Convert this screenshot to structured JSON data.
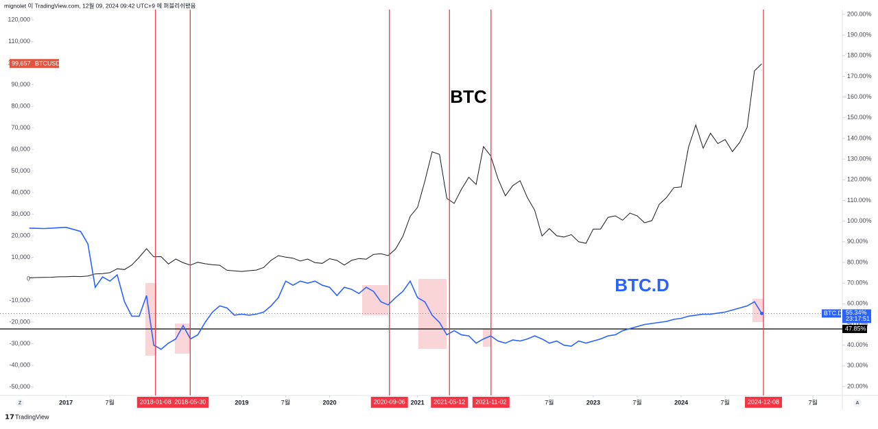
{
  "header": {
    "publisher": "mignolet 이 TradingView.com, 12월 09, 2024 09:42 UTC+9 에 퍼블리쉬됐음"
  },
  "footer": {
    "brand": "TradingView"
  },
  "chart_data": {
    "type": "line",
    "annotations": [
      "BTC",
      "BTC.D"
    ],
    "xlim": [
      "2016-04",
      "2025-11"
    ],
    "xticks": [
      {
        "value": "2017-01",
        "label": "2017"
      },
      {
        "value": "2017-07",
        "label": "7월"
      },
      {
        "value": "2019-01",
        "label": "2019"
      },
      {
        "value": "2019-07",
        "label": "7월"
      },
      {
        "value": "2020-01",
        "label": "2020"
      },
      {
        "value": "2021-01",
        "label": "2021"
      },
      {
        "value": "2022-07",
        "label": "7월"
      },
      {
        "value": "2023-01",
        "label": "2023"
      },
      {
        "value": "2023-07",
        "label": "7월"
      },
      {
        "value": "2024-01",
        "label": "2024"
      },
      {
        "value": "2024-07",
        "label": "7월"
      },
      {
        "value": "2025-07",
        "label": "7월"
      }
    ],
    "ylim": [
      -54000,
      124800
    ],
    "yticks": [
      {
        "value": -50000,
        "label": "-50,000"
      },
      {
        "value": -40000,
        "label": "-40,000"
      },
      {
        "value": -30000,
        "label": "-30,000"
      },
      {
        "value": -20000,
        "label": "-20,000"
      },
      {
        "value": -10000,
        "label": "-10,000"
      },
      0,
      {
        "value": 10000,
        "label": "10,000"
      },
      {
        "value": 20000,
        "label": "20,000"
      },
      {
        "value": 30000,
        "label": "30,000"
      },
      {
        "value": 40000,
        "label": "40,000"
      },
      {
        "value": 50000,
        "label": "50,000"
      },
      {
        "value": 60000,
        "label": "60,000"
      },
      {
        "value": 70000,
        "label": "70,000"
      },
      {
        "value": 80000,
        "label": "80,000"
      },
      {
        "value": 90000,
        "label": "90,000"
      },
      {
        "value": 100000,
        "label": "100,000"
      },
      {
        "value": 110000,
        "label": "110,000"
      },
      {
        "value": 120000,
        "label": "120,000"
      }
    ],
    "y2lim": [
      15.7,
      202.3
    ],
    "y2ticks": [
      {
        "value": 20,
        "label": "20.00%"
      },
      {
        "value": 30,
        "label": "30.00%"
      },
      {
        "value": 40,
        "label": "40.00%"
      },
      {
        "value": 50,
        "label": "50.00%"
      },
      {
        "value": 60,
        "label": "60.00%"
      },
      {
        "value": 70,
        "label": "70.00%"
      },
      {
        "value": 80,
        "label": "80.00%"
      },
      {
        "value": 90,
        "label": "90.00%"
      },
      {
        "value": 100,
        "label": "100.00%"
      },
      {
        "value": 110,
        "label": "110.00%"
      },
      {
        "value": 120,
        "label": "120.00%"
      },
      {
        "value": 130,
        "label": "130.00%"
      },
      {
        "value": 140,
        "label": "140.00%"
      },
      {
        "value": 150,
        "label": "150.00%"
      },
      {
        "value": 160,
        "label": "160.00%"
      },
      {
        "value": 170,
        "label": "170.00%"
      },
      {
        "value": 180,
        "label": "180.00%"
      },
      {
        "value": 190,
        "label": "190.00%"
      },
      {
        "value": 200,
        "label": "200.00%"
      }
    ],
    "hline": {
      "value": 47.85,
      "label": "47.85%",
      "axis": "y2",
      "color": "#000000"
    },
    "event_dates": [
      "2018-01-08",
      "2018-05-30",
      "2020-09-06",
      "2021-05-12",
      "2021-11-02",
      "2024-12-08"
    ],
    "event_color": "#f23645",
    "x": [
      "2016-08",
      "2016-09",
      "2016-10",
      "2016-11",
      "2016-12",
      "2017-01",
      "2017-02",
      "2017-03",
      "2017-04",
      "2017-05",
      "2017-06",
      "2017-07",
      "2017-08",
      "2017-09",
      "2017-10",
      "2017-11",
      "2017-12",
      "2018-01",
      "2018-02",
      "2018-03",
      "2018-04",
      "2018-05",
      "2018-06",
      "2018-07",
      "2018-08",
      "2018-09",
      "2018-10",
      "2018-11",
      "2018-12",
      "2019-01",
      "2019-02",
      "2019-03",
      "2019-04",
      "2019-05",
      "2019-06",
      "2019-07",
      "2019-08",
      "2019-09",
      "2019-10",
      "2019-11",
      "2019-12",
      "2020-01",
      "2020-02",
      "2020-03",
      "2020-04",
      "2020-05",
      "2020-06",
      "2020-07",
      "2020-08",
      "2020-09",
      "2020-10",
      "2020-11",
      "2020-12",
      "2021-01",
      "2021-02",
      "2021-03",
      "2021-04",
      "2021-05",
      "2021-06",
      "2021-07",
      "2021-08",
      "2021-09",
      "2021-10",
      "2021-11",
      "2021-12",
      "2022-01",
      "2022-02",
      "2022-03",
      "2022-04",
      "2022-05",
      "2022-06",
      "2022-07",
      "2022-08",
      "2022-09",
      "2022-10",
      "2022-11",
      "2022-12",
      "2023-01",
      "2023-02",
      "2023-03",
      "2023-04",
      "2023-05",
      "2023-06",
      "2023-07",
      "2023-08",
      "2023-09",
      "2023-10",
      "2023-11",
      "2023-12",
      "2024-01",
      "2024-02",
      "2024-03",
      "2024-04",
      "2024-05",
      "2024-06",
      "2024-07",
      "2024-08",
      "2024-09",
      "2024-10",
      "2024-11",
      "2024-12"
    ],
    "series": [
      {
        "name": "BTCUSD",
        "color": "#131722",
        "last_label": "99,657",
        "tag_color": "#e0553f",
        "values": [
          575,
          610,
          700,
          740,
          960,
          970,
          1190,
          1080,
          1350,
          2300,
          2480,
          2870,
          4700,
          4340,
          6450,
          10000,
          14000,
          10200,
          10300,
          6900,
          9200,
          7500,
          6400,
          7700,
          7000,
          6600,
          6300,
          4000,
          3700,
          3450,
          3800,
          4100,
          5300,
          8600,
          10800,
          10100,
          9600,
          8300,
          9200,
          7550,
          7200,
          9350,
          8550,
          6400,
          8600,
          9450,
          9150,
          11350,
          11650,
          10780,
          13800,
          19700,
          29000,
          33100,
          45200,
          58900,
          57700,
          37300,
          35000,
          41500,
          47100,
          43800,
          61300,
          57000,
          46300,
          38500,
          43200,
          45500,
          37700,
          31800,
          19900,
          23300,
          20000,
          19400,
          20500,
          17200,
          16500,
          23100,
          23100,
          28500,
          29200,
          27200,
          30500,
          29200,
          26000,
          27000,
          34500,
          37700,
          42300,
          42600,
          61100,
          71300,
          60600,
          67500,
          62700,
          64600,
          59000,
          63300,
          70200,
          96400,
          99657
        ]
      },
      {
        "name": "BTC.D",
        "color": "#2962ff",
        "axis": "y2",
        "last_label": "55.34%",
        "countdown": "23:17:51",
        "values": [
          96.6,
          96.5,
          96.4,
          96.6,
          96.8,
          97,
          96,
          95,
          89,
          68,
          73,
          71,
          74,
          61,
          54,
          54,
          64,
          40,
          38,
          41,
          43,
          49.5,
          43,
          45,
          51,
          56,
          59,
          58,
          54.5,
          55,
          54.5,
          55,
          56,
          59,
          63,
          71,
          69,
          71,
          70,
          71,
          69,
          68,
          64,
          68,
          67,
          65,
          68,
          66,
          61,
          59.5,
          63,
          66,
          71,
          63,
          61,
          54.5,
          51,
          45,
          47,
          45,
          44.5,
          41,
          43,
          44.5,
          42,
          41,
          42.5,
          42,
          43,
          44.5,
          43,
          41,
          42,
          40,
          39.5,
          42,
          41,
          42,
          43,
          44.5,
          45,
          47,
          48,
          49,
          50,
          50.5,
          51,
          51.5,
          52.5,
          53,
          54,
          54.5,
          55,
          55,
          55.5,
          56,
          57,
          58,
          59,
          61,
          55.34
        ]
      }
    ]
  }
}
